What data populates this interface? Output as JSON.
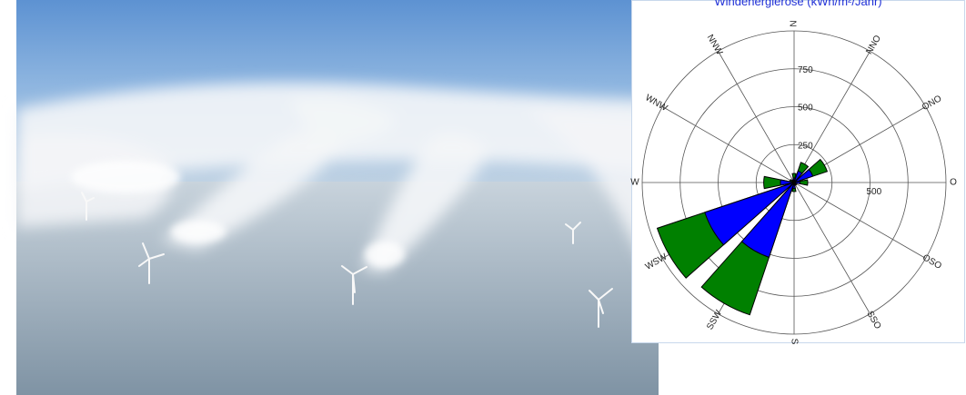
{
  "chart_data": {
    "type": "polar-bar",
    "title": "Windenergierose (kWh/m²/Jahr)",
    "directions": [
      "N",
      "NNO",
      "ONO",
      "O",
      "OSO",
      "SSO",
      "S",
      "SSW",
      "WSW",
      "W",
      "WNW",
      "NNW"
    ],
    "radial_ticks": [
      "250",
      "500",
      "750"
    ],
    "side_tick": "500",
    "rmax": 1000,
    "series": [
      {
        "color": "#008000",
        "values": [
          60,
          140,
          230,
          90,
          20,
          20,
          60,
          920,
          950,
          200,
          30,
          20
        ]
      },
      {
        "color": "#0000ff",
        "values": [
          30,
          80,
          130,
          40,
          10,
          10,
          40,
          520,
          620,
          90,
          10,
          10
        ]
      }
    ]
  }
}
